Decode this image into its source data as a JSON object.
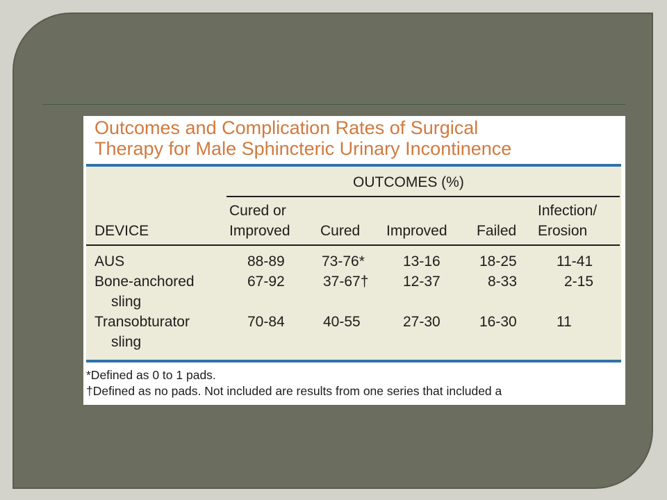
{
  "title": {
    "line1": "Outcomes and Complication Rates of Surgical",
    "line2": "Therapy for Male Sphincteric Urinary Incontinence"
  },
  "table": {
    "group_header": "OUTCOMES (%)",
    "headers": {
      "device": "DEVICE",
      "cured_or_improved_1": "Cured or",
      "cured_or_improved_2": "Improved",
      "cured": "Cured",
      "improved": "Improved",
      "failed": "Failed",
      "infection_1": "Infection/",
      "infection_2": "Erosion"
    },
    "rows": [
      {
        "device_1": "AUS",
        "device_2": "",
        "cured_or_improved": "88-89",
        "cured": "73-76*",
        "improved": "13-16",
        "failed": "18-25",
        "infection_erosion": "11-41"
      },
      {
        "device_1": "Bone-anchored",
        "device_2": "sling",
        "cured_or_improved": "67-92",
        "cured": "37-67†",
        "improved": "12-37",
        "failed": "8-33",
        "infection_erosion": "2-15"
      },
      {
        "device_1": "Transobturator",
        "device_2": "sling",
        "cured_or_improved": "70-84",
        "cured": "40-55",
        "improved": "27-30",
        "failed": "16-30",
        "infection_erosion": "11"
      }
    ]
  },
  "footnotes": [
    "*Defined as 0 to 1 pads.",
    "†Defined as no pads. Not included are results from one series that included a"
  ]
}
